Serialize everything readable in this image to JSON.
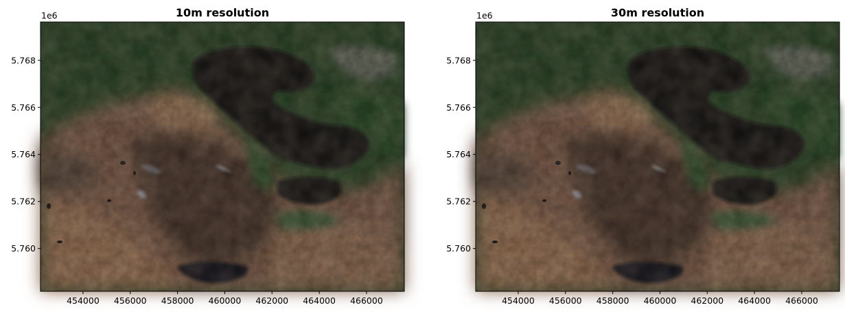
{
  "chart_data": [
    {
      "type": "heatmap",
      "title": "10m resolution",
      "xlabel": "",
      "ylabel": "",
      "xlim": [
        452200,
        467600
      ],
      "ylim": [
        5.75818,
        5.76963
      ],
      "x_ticks": [
        454000,
        456000,
        458000,
        460000,
        462000,
        464000,
        466000
      ],
      "x_tick_labels": [
        "454000",
        "456000",
        "458000",
        "460000",
        "462000",
        "464000",
        "466000"
      ],
      "y_ticks": [
        5.76,
        5.762,
        5.764,
        5.766,
        5.768
      ],
      "y_tick_labels": [
        "5.760",
        "5.762",
        "5.764",
        "5.766",
        "5.768"
      ],
      "y_offset_label": "1e6",
      "grid": false,
      "content": "RGB satellite image"
    },
    {
      "type": "heatmap",
      "title": "30m resolution",
      "xlabel": "",
      "ylabel": "",
      "xlim": [
        452200,
        467600
      ],
      "ylim": [
        5.75818,
        5.76963
      ],
      "x_ticks": [
        454000,
        456000,
        458000,
        460000,
        462000,
        464000,
        466000
      ],
      "x_tick_labels": [
        "454000",
        "456000",
        "458000",
        "460000",
        "462000",
        "464000",
        "466000"
      ],
      "y_ticks": [
        5.76,
        5.762,
        5.764,
        5.766,
        5.768
      ],
      "y_tick_labels": [
        "5.760",
        "5.762",
        "5.764",
        "5.766",
        "5.768"
      ],
      "y_offset_label": "1e6",
      "grid": false,
      "content": "RGB satellite image"
    }
  ],
  "colors": {
    "vegetation": "#1f3a1e",
    "bare_land": "#7a5a42",
    "dark_upland": "#3a2a24",
    "water": "#0b0b0e",
    "urban": "#8b8b86"
  }
}
